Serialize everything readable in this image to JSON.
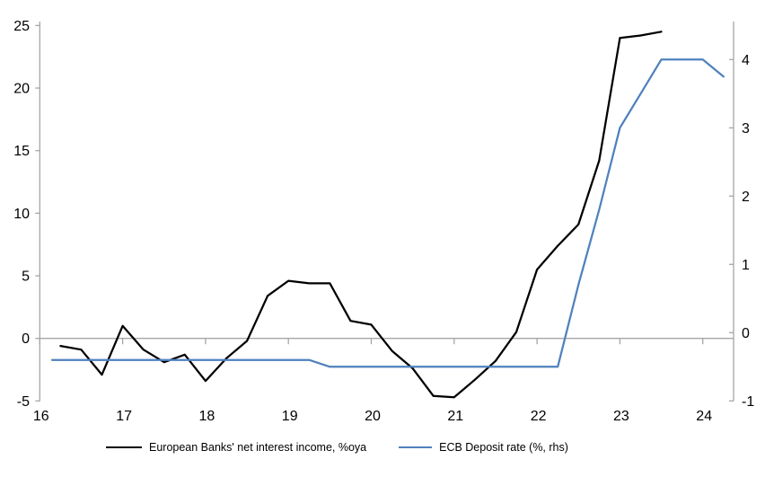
{
  "chart_data": {
    "type": "line",
    "title": "",
    "series": [
      {
        "name": "European Banks' net interest income, %oya",
        "axis": "left",
        "color": "#000000",
        "x": [
          16.25,
          16.5,
          16.75,
          17,
          17.25,
          17.5,
          17.75,
          18,
          18.25,
          18.5,
          18.75,
          19,
          19.25,
          19.5,
          19.75,
          20,
          20.25,
          20.5,
          20.75,
          21,
          21.25,
          21.5,
          21.75,
          22,
          22.25,
          22.5,
          22.75,
          23,
          23.25,
          23.5
        ],
        "values": [
          -0.6,
          -0.9,
          -2.9,
          1,
          -0.9,
          -1.9,
          -1.3,
          -3.4,
          -1.6,
          -0.2,
          3.4,
          4.6,
          4.4,
          4.4,
          1.4,
          1.1,
          -1,
          -2.4,
          -4.6,
          -4.7,
          -3.3,
          -1.8,
          0.5,
          5.5,
          7.4,
          9.1,
          14.2,
          24,
          24.2,
          24.5
        ]
      },
      {
        "name": "ECB Deposit rate (%, rhs)",
        "axis": "right",
        "color": "#4f81bd",
        "x": [
          16.15,
          16.25,
          16.5,
          16.75,
          17,
          17.25,
          17.5,
          17.75,
          18,
          18.25,
          18.5,
          18.75,
          19,
          19.25,
          19.5,
          19.75,
          20,
          20.25,
          20.5,
          20.75,
          21,
          21.25,
          21.5,
          21.75,
          22,
          22.25,
          22.5,
          22.75,
          23,
          23.25,
          23.5,
          23.75,
          24,
          24.25
        ],
        "values": [
          -0.4,
          -0.4,
          -0.4,
          -0.4,
          -0.4,
          -0.4,
          -0.4,
          -0.4,
          -0.4,
          -0.4,
          -0.4,
          -0.4,
          -0.4,
          -0.4,
          -0.5,
          -0.5,
          -0.5,
          -0.5,
          -0.5,
          -0.5,
          -0.5,
          -0.5,
          -0.5,
          -0.5,
          -0.5,
          -0.5,
          0.7,
          1.8,
          3,
          3.5,
          4,
          4,
          4,
          3.75
        ]
      }
    ],
    "left_axis": {
      "min": -5,
      "max": 25,
      "ticks": [
        25,
        20,
        15,
        10,
        5,
        0,
        -5
      ],
      "tick_labels": [
        "25",
        "20",
        "15",
        "10",
        "5",
        "0",
        "-5"
      ]
    },
    "right_axis": {
      "min": -1,
      "max": 4.5,
      "ticks": [
        4,
        3,
        2,
        1,
        0,
        -1
      ],
      "tick_labels": [
        "4",
        "3",
        "2",
        "1",
        "0",
        "-1"
      ]
    },
    "x_axis": {
      "min": 16,
      "max": 24.37,
      "ticks": [
        16,
        17,
        18,
        19,
        20,
        21,
        22,
        23,
        24
      ],
      "tick_labels": [
        "16",
        "17",
        "18",
        "19",
        "20",
        "21",
        "22",
        "23",
        "24"
      ]
    },
    "grid": false,
    "zero_line": true,
    "legend_position": "bottom"
  },
  "colors": {
    "series_nii": "#000000",
    "series_ecb": "#4f81bd",
    "axis": "#a6a6a6",
    "text": "#000000",
    "background": "#ffffff"
  }
}
